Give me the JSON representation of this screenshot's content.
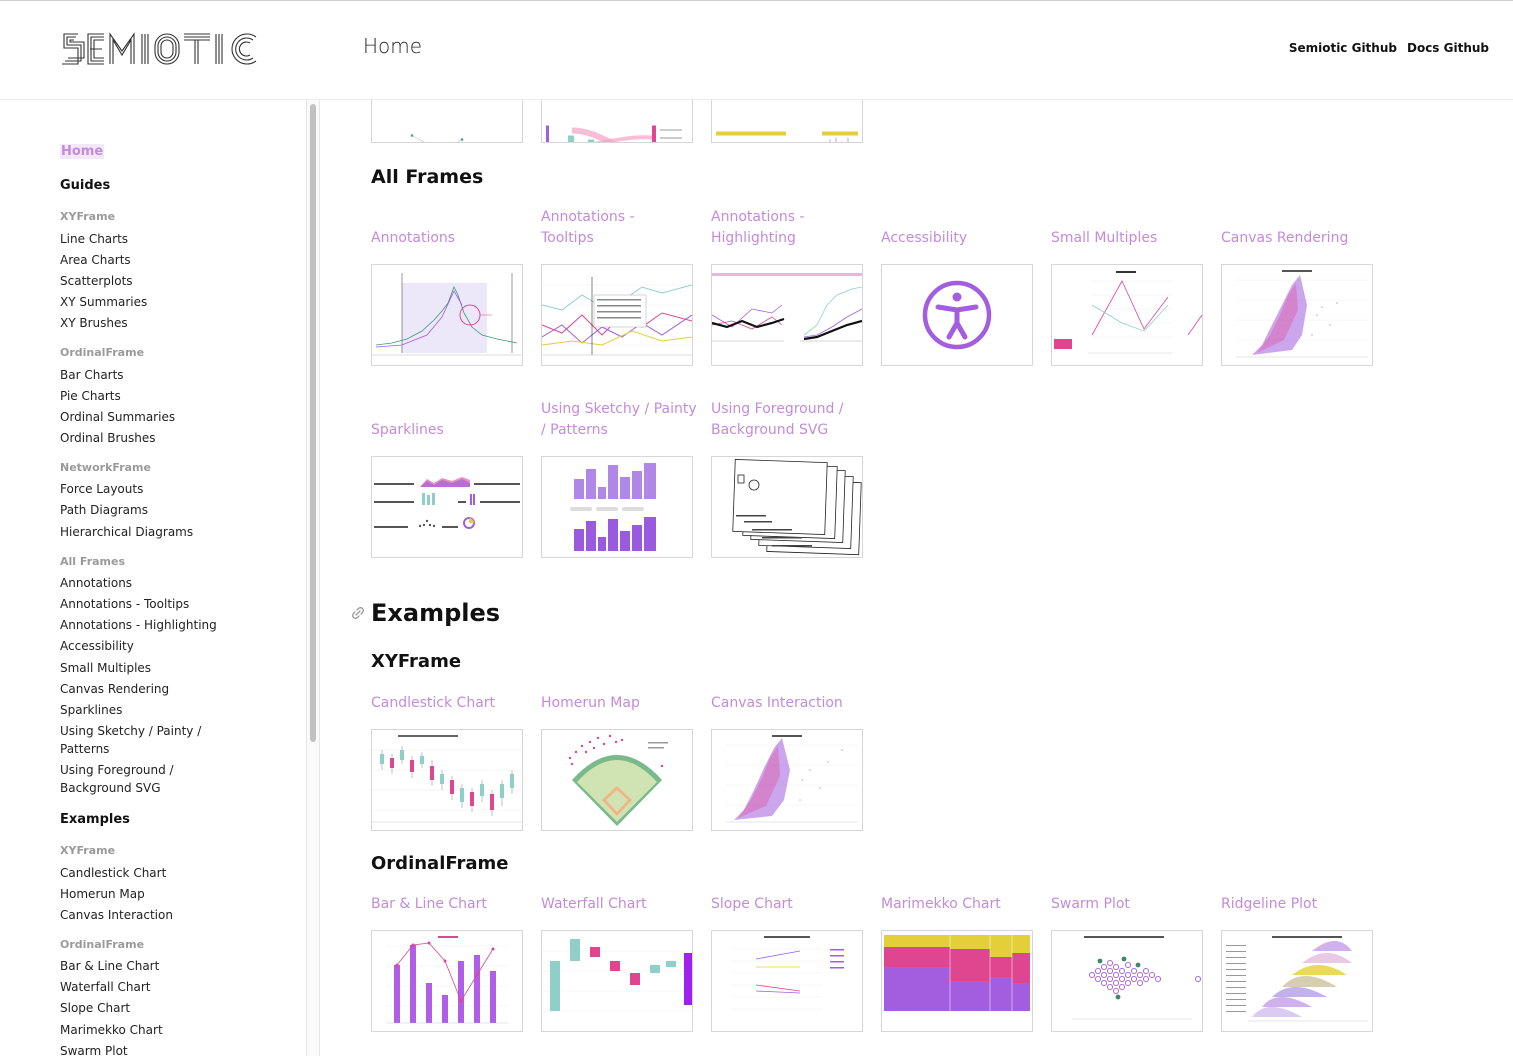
{
  "header": {
    "logo_text": "SEMIOTIC",
    "page_title": "Home",
    "links": [
      "Semiotic Github",
      "Docs Github"
    ]
  },
  "sidebar": {
    "home": "Home",
    "guides": "Guides",
    "xyframe": "XYFrame",
    "xy_items": [
      "Line Charts",
      "Area Charts",
      "Scatterplots",
      "XY Summaries",
      "XY Brushes"
    ],
    "ordinalframe": "OrdinalFrame",
    "ordinal_items": [
      "Bar Charts",
      "Pie Charts",
      "Ordinal Summaries",
      "Ordinal Brushes"
    ],
    "networkframe": "NetworkFrame",
    "network_items": [
      "Force Layouts",
      "Path Diagrams",
      "Hierarchical Diagrams"
    ],
    "allframes": "All Frames",
    "all_items": [
      "Annotations",
      "Annotations - Tooltips",
      "Annotations - Highlighting",
      "Accessibility",
      "Small Multiples",
      "Canvas Rendering",
      "Sparklines"
    ],
    "sketchy_1": "Using Sketchy / Painty /",
    "sketchy_2": "Patterns",
    "foreground_1": "Using Foreground /",
    "foreground_2": "Background SVG",
    "examples": "Examples",
    "ex_xyframe": "XYFrame",
    "ex_xy_items": [
      "Candlestick Chart",
      "Homerun Map",
      "Canvas Interaction"
    ],
    "ex_ordinalframe": "OrdinalFrame",
    "ex_ordinal_items": [
      "Bar & Line Chart",
      "Waterfall Chart",
      "Slope Chart",
      "Marimekko Chart",
      "Swarm Plot"
    ]
  },
  "main": {
    "all_frames_heading": "All Frames",
    "all_frames_cards": [
      {
        "title_1": "",
        "title_2": "Annotations",
        "thumb_icon": "annotations-chart-icon"
      },
      {
        "title_1": "Annotations -",
        "title_2": "Tooltips",
        "thumb_icon": "tooltips-chart-icon"
      },
      {
        "title_1": "Annotations -",
        "title_2": "Highlighting",
        "thumb_icon": "highlighting-chart-icon"
      },
      {
        "title_1": "",
        "title_2": "Accessibility",
        "thumb_icon": "accessibility-icon"
      },
      {
        "title_1": "",
        "title_2": "Small Multiples",
        "thumb_icon": "small-multiples-chart-icon"
      },
      {
        "title_1": "",
        "title_2": "Canvas Rendering",
        "thumb_icon": "canvas-scatter-chart-icon"
      }
    ],
    "all_frames_cards_row2": [
      {
        "title_1": "",
        "title_2": "Sparklines",
        "thumb_icon": "sparklines-icon"
      },
      {
        "title_1": "Using Sketchy / Painty",
        "title_2": "/ Patterns",
        "thumb_icon": "sketchy-bars-icon"
      },
      {
        "title_1": "Using Foreground /",
        "title_2": "Background SVG",
        "thumb_icon": "layers-sketch-icon"
      }
    ],
    "examples_heading": "Examples",
    "ex_xyframe_heading": "XYFrame",
    "ex_xy_cards": [
      {
        "title": "Candlestick Chart",
        "thumb_icon": "candlestick-chart-icon"
      },
      {
        "title": "Homerun Map",
        "thumb_icon": "baseball-field-icon"
      },
      {
        "title": "Canvas Interaction",
        "thumb_icon": "canvas-scatter-chart-icon"
      }
    ],
    "ex_ordinalframe_heading": "OrdinalFrame",
    "ex_ordinal_cards": [
      {
        "title": "Bar & Line Chart",
        "thumb_icon": "bar-line-chart-icon"
      },
      {
        "title": "Waterfall Chart",
        "thumb_icon": "waterfall-chart-icon"
      },
      {
        "title": "Slope Chart",
        "thumb_icon": "slope-chart-icon"
      },
      {
        "title": "Marimekko Chart",
        "thumb_icon": "marimekko-chart-icon"
      },
      {
        "title": "Swarm Plot",
        "thumb_icon": "swarm-plot-icon"
      },
      {
        "title": "Ridgeline Plot",
        "thumb_icon": "ridgeline-plot-icon"
      }
    ]
  },
  "colors": {
    "accent": "#c48bd9",
    "purple": "#a35ddf",
    "pink": "#e0458f",
    "teal": "#8fcfc8",
    "yellow": "#e3cf3a"
  }
}
